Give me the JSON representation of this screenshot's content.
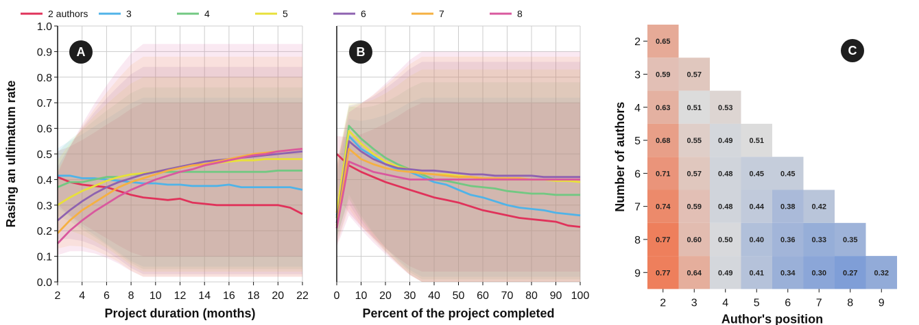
{
  "legend": {
    "entries": [
      {
        "label": "2 authors",
        "color": "#e0325a"
      },
      {
        "label": "3",
        "color": "#4fb3e8"
      },
      {
        "label": "4",
        "color": "#72c882"
      },
      {
        "label": "5",
        "color": "#e8e03a"
      },
      {
        "label": "6",
        "color": "#8e62b0"
      },
      {
        "label": "7",
        "color": "#f5b042"
      },
      {
        "label": "8",
        "color": "#d9589e"
      }
    ]
  },
  "chart_data": [
    {
      "type": "line",
      "badge": "A",
      "xlabel": "Project duration (months)",
      "ylabel": "Rasing an ultimatum rate",
      "xlim": [
        2,
        22
      ],
      "ylim": [
        0,
        1
      ],
      "xticks": [
        "2",
        "4",
        "6",
        "8",
        "10",
        "12",
        "14",
        "16",
        "18",
        "20",
        "22"
      ],
      "yticks": [
        "0.0",
        "0.1",
        "0.2",
        "0.3",
        "0.4",
        "0.5",
        "0.6",
        "0.7",
        "0.8",
        "0.9",
        "1.0"
      ],
      "grid": true,
      "x": [
        2,
        3,
        4,
        5,
        6,
        7,
        8,
        9,
        10,
        11,
        12,
        13,
        14,
        15,
        16,
        17,
        18,
        19,
        20,
        21,
        22
      ],
      "series": [
        {
          "name": "2 authors",
          "color": "#e0325a",
          "band": [
            0.1,
            0.7
          ],
          "values": [
            0.41,
            0.39,
            0.38,
            0.375,
            0.37,
            0.355,
            0.34,
            0.33,
            0.325,
            0.32,
            0.325,
            0.31,
            0.305,
            0.3,
            0.3,
            0.3,
            0.3,
            0.3,
            0.3,
            0.29,
            0.265
          ]
        },
        {
          "name": "3",
          "color": "#4fb3e8",
          "band": [
            0.06,
            0.72
          ],
          "values": [
            0.415,
            0.415,
            0.405,
            0.405,
            0.4,
            0.395,
            0.39,
            0.385,
            0.385,
            0.38,
            0.38,
            0.375,
            0.375,
            0.375,
            0.38,
            0.37,
            0.37,
            0.37,
            0.37,
            0.37,
            0.36
          ]
        },
        {
          "name": "4",
          "color": "#72c882",
          "band": [
            0.05,
            0.76
          ],
          "values": [
            0.37,
            0.39,
            0.39,
            0.4,
            0.41,
            0.41,
            0.42,
            0.42,
            0.43,
            0.43,
            0.43,
            0.43,
            0.43,
            0.43,
            0.43,
            0.43,
            0.43,
            0.43,
            0.435,
            0.435,
            0.435
          ]
        },
        {
          "name": "5",
          "color": "#e8e03a",
          "band": [
            0.04,
            0.8
          ],
          "values": [
            0.3,
            0.33,
            0.355,
            0.375,
            0.395,
            0.41,
            0.42,
            0.425,
            0.43,
            0.44,
            0.45,
            0.455,
            0.46,
            0.465,
            0.47,
            0.475,
            0.475,
            0.48,
            0.48,
            0.48,
            0.48
          ]
        },
        {
          "name": "6",
          "color": "#8e62b0",
          "band": [
            0.03,
            0.84
          ],
          "values": [
            0.24,
            0.28,
            0.315,
            0.345,
            0.37,
            0.39,
            0.405,
            0.42,
            0.43,
            0.44,
            0.45,
            0.46,
            0.47,
            0.475,
            0.48,
            0.485,
            0.49,
            0.495,
            0.5,
            0.505,
            0.51
          ]
        },
        {
          "name": "7",
          "color": "#f5b042",
          "band": [
            0.02,
            0.88
          ],
          "values": [
            0.19,
            0.24,
            0.28,
            0.31,
            0.34,
            0.37,
            0.39,
            0.405,
            0.42,
            0.435,
            0.445,
            0.455,
            0.46,
            0.47,
            0.48,
            0.49,
            0.5,
            0.505,
            0.51,
            0.515,
            0.52
          ]
        },
        {
          "name": "8",
          "color": "#d9589e",
          "band": [
            0.02,
            0.93
          ],
          "values": [
            0.15,
            0.2,
            0.24,
            0.275,
            0.305,
            0.335,
            0.36,
            0.38,
            0.4,
            0.415,
            0.43,
            0.44,
            0.455,
            0.465,
            0.475,
            0.485,
            0.495,
            0.5,
            0.51,
            0.515,
            0.52
          ]
        }
      ]
    },
    {
      "type": "line",
      "badge": "B",
      "xlabel": "Percent of the project completed",
      "xlim": [
        0,
        100
      ],
      "ylim": [
        0,
        1
      ],
      "xticks": [
        "0",
        "10",
        "20",
        "30",
        "40",
        "50",
        "60",
        "70",
        "80",
        "90",
        "100"
      ],
      "grid": true,
      "x": [
        0,
        5,
        10,
        15,
        20,
        25,
        30,
        35,
        40,
        45,
        50,
        55,
        60,
        65,
        70,
        75,
        80,
        85,
        90,
        95,
        100
      ],
      "series": [
        {
          "name": "2 authors",
          "color": "#e0325a",
          "band": [
            0.04,
            0.7
          ],
          "values": [
            0.5,
            0.455,
            0.43,
            0.41,
            0.39,
            0.375,
            0.36,
            0.345,
            0.33,
            0.32,
            0.31,
            0.295,
            0.28,
            0.27,
            0.26,
            0.25,
            0.245,
            0.24,
            0.235,
            0.22,
            0.215
          ]
        },
        {
          "name": "3",
          "color": "#4fb3e8",
          "band": [
            0.02,
            0.72
          ],
          "values": [
            0.26,
            0.57,
            0.52,
            0.49,
            0.46,
            0.44,
            0.43,
            0.41,
            0.39,
            0.38,
            0.36,
            0.34,
            0.33,
            0.315,
            0.3,
            0.29,
            0.285,
            0.28,
            0.27,
            0.265,
            0.26
          ]
        },
        {
          "name": "4",
          "color": "#72c882",
          "band": [
            0.01,
            0.78
          ],
          "values": [
            0.25,
            0.61,
            0.56,
            0.52,
            0.485,
            0.46,
            0.44,
            0.42,
            0.4,
            0.395,
            0.385,
            0.375,
            0.37,
            0.365,
            0.355,
            0.35,
            0.345,
            0.345,
            0.34,
            0.34,
            0.34
          ]
        },
        {
          "name": "5",
          "color": "#e8e03a",
          "band": [
            0.0,
            0.83
          ],
          "values": [
            0.27,
            0.59,
            0.54,
            0.5,
            0.47,
            0.45,
            0.44,
            0.425,
            0.42,
            0.42,
            0.415,
            0.41,
            0.405,
            0.4,
            0.4,
            0.4,
            0.4,
            0.4,
            0.395,
            0.395,
            0.39
          ]
        },
        {
          "name": "6",
          "color": "#8e62b0",
          "band": [
            0.0,
            0.86
          ],
          "values": [
            0.23,
            0.55,
            0.51,
            0.48,
            0.46,
            0.445,
            0.44,
            0.435,
            0.435,
            0.43,
            0.425,
            0.42,
            0.42,
            0.415,
            0.415,
            0.415,
            0.415,
            0.41,
            0.41,
            0.41,
            0.41
          ]
        },
        {
          "name": "7",
          "color": "#f5b042",
          "band": [
            0.0,
            0.88
          ],
          "values": [
            0.22,
            0.52,
            0.48,
            0.46,
            0.445,
            0.435,
            0.43,
            0.425,
            0.42,
            0.415,
            0.41,
            0.41,
            0.405,
            0.405,
            0.405,
            0.405,
            0.4,
            0.4,
            0.4,
            0.4,
            0.4
          ]
        },
        {
          "name": "8",
          "color": "#d9589e",
          "band": [
            0.0,
            0.9
          ],
          "values": [
            0.21,
            0.47,
            0.45,
            0.43,
            0.42,
            0.41,
            0.4,
            0.4,
            0.4,
            0.4,
            0.4,
            0.4,
            0.4,
            0.4,
            0.4,
            0.4,
            0.4,
            0.4,
            0.4,
            0.4,
            0.4
          ]
        }
      ]
    },
    {
      "type": "heatmap",
      "badge": "C",
      "xlabel": "Author's position",
      "ylabel": "Number of authors",
      "xticks": [
        "2",
        "3",
        "4",
        "5",
        "6",
        "7",
        "8",
        "9"
      ],
      "yticks": [
        "2",
        "3",
        "4",
        "5",
        "6",
        "7",
        "8",
        "9"
      ],
      "color_low": "#7f9ed7",
      "color_mid": "#dcdcdc",
      "color_high": "#ee7f5c",
      "value_range": [
        0.27,
        0.77
      ],
      "rows": [
        [
          "0.65"
        ],
        [
          "0.59",
          "0.57"
        ],
        [
          "0.63",
          "0.51",
          "0.53"
        ],
        [
          "0.68",
          "0.55",
          "0.49",
          "0.51"
        ],
        [
          "0.71",
          "0.57",
          "0.48",
          "0.45",
          "0.45"
        ],
        [
          "0.74",
          "0.59",
          "0.48",
          "0.44",
          "0.38",
          "0.42"
        ],
        [
          "0.77",
          "0.60",
          "0.50",
          "0.40",
          "0.36",
          "0.33",
          "0.35"
        ],
        [
          "0.77",
          "0.64",
          "0.49",
          "0.41",
          "0.34",
          "0.30",
          "0.27",
          "0.32"
        ]
      ]
    }
  ]
}
